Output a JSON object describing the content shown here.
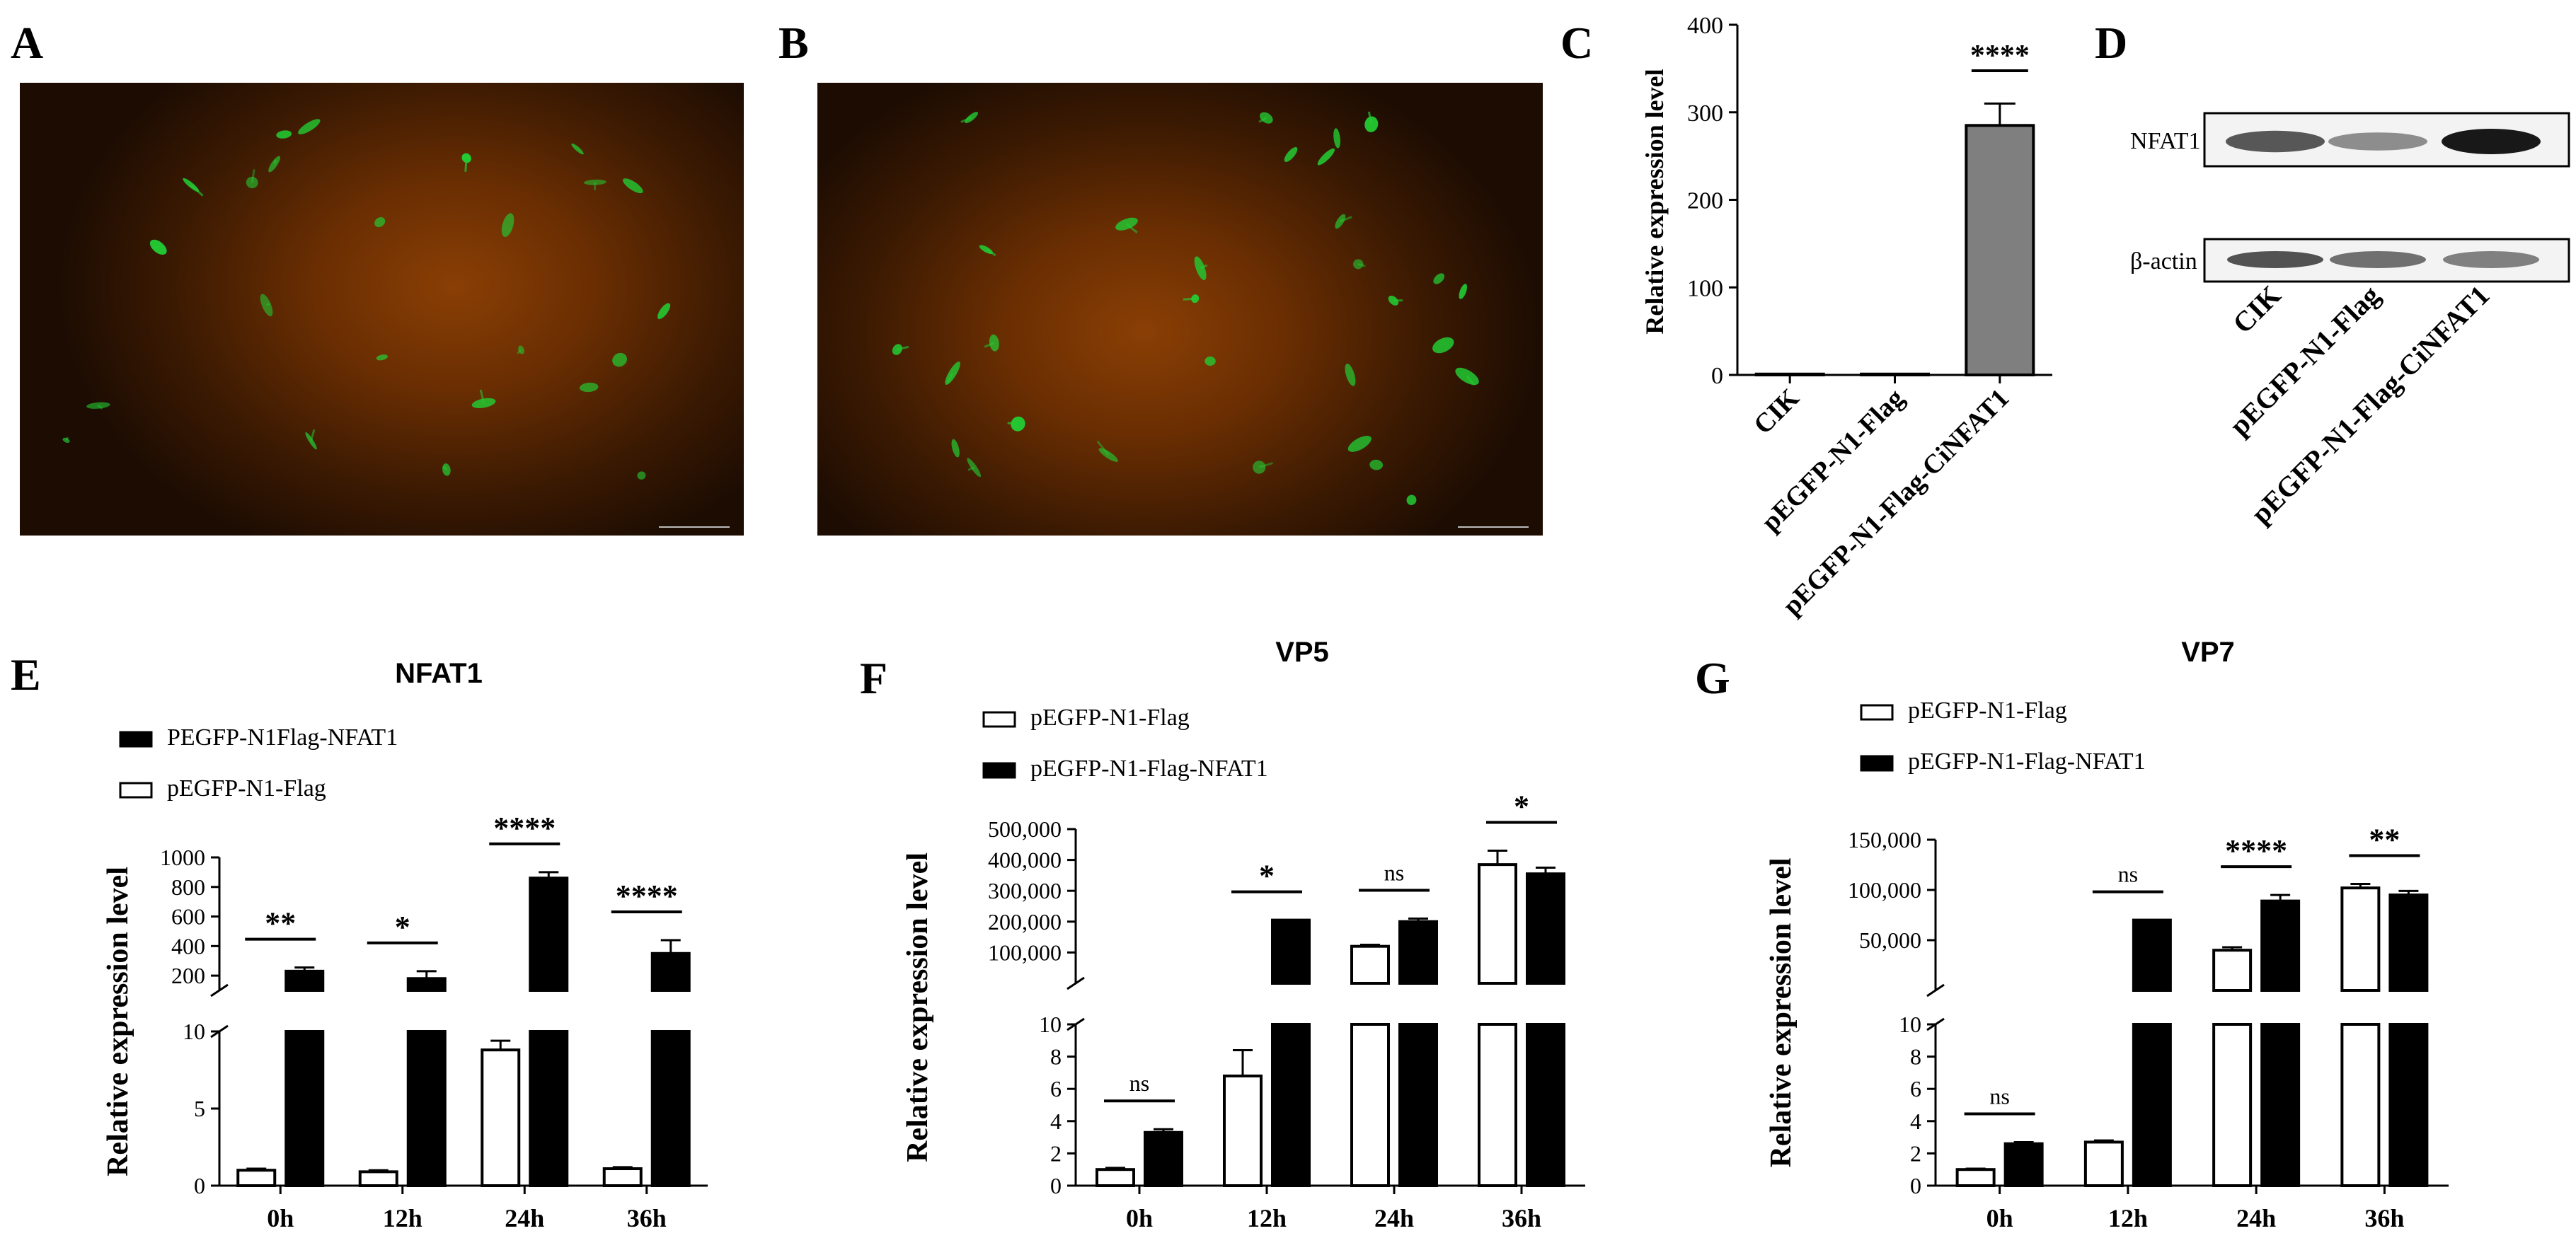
{
  "panel_letters": {
    "a": "A",
    "b": "B",
    "c": "C",
    "d": "D",
    "e": "E",
    "f": "F",
    "g": "G"
  },
  "western_blot": {
    "row_labels": [
      "NFAT1",
      "β-actin"
    ],
    "lanes": [
      "CIK",
      "pEGFP-N1-Flag",
      "pEGFP-N1-Flag-CiNFAT1"
    ],
    "intensity": {
      "NFAT1": [
        0.65,
        0.35,
        1.0
      ],
      "beta_actin": [
        0.8,
        0.6,
        0.5
      ]
    }
  },
  "colors": {
    "fluorescence_green": "#22cc33",
    "background_orange": "#8a3a00",
    "bar_gray": "#7f7f7f",
    "bar_black": "#000000",
    "bar_white": "#ffffff"
  },
  "chart_data": [
    {
      "id": "C",
      "type": "bar",
      "title": "",
      "ylabel": "Relative  expression level",
      "categories": [
        "CIK",
        "pEGFP-N1-Flag",
        "pEGFP-N1-Flag-CiNFAT1"
      ],
      "values": [
        1,
        1,
        285
      ],
      "errors": [
        0,
        0,
        25
      ],
      "ylim": [
        0,
        400
      ],
      "yticks": [
        0,
        100,
        200,
        300,
        400
      ],
      "significance": [
        {
          "from": 2,
          "to": 2,
          "label": "****"
        }
      ]
    },
    {
      "id": "E",
      "type": "bar",
      "title": "NFAT1",
      "ylabel": "Relative  expression level",
      "categories": [
        "0h",
        "12h",
        "24h",
        "36h"
      ],
      "broken_axis": {
        "lower": [
          0,
          10
        ],
        "upper": [
          10,
          1000
        ],
        "lower_ticks": [
          0,
          5,
          10
        ],
        "upper_ticks": [
          200,
          400,
          600,
          800,
          1000
        ]
      },
      "legend": [
        "PEGFP-N1Flag-NFAT1",
        "pEGFP-N1-Flag"
      ],
      "series": [
        {
          "name": "pEGFP-N1-Flag",
          "values": [
            1,
            0.9,
            8.8,
            1.1
          ],
          "errors": [
            0.1,
            0.1,
            0.6,
            0.1
          ]
        },
        {
          "name": "PEGFP-N1Flag-NFAT1",
          "values": [
            230,
            180,
            860,
            350
          ],
          "errors": [
            25,
            50,
            40,
            90
          ]
        }
      ],
      "significance": [
        "**",
        "*",
        "****",
        "****"
      ]
    },
    {
      "id": "F",
      "type": "bar",
      "title": "VP5",
      "ylabel": "Relative  expression level",
      "categories": [
        "0h",
        "12h",
        "24h",
        "36h"
      ],
      "broken_axis": {
        "lower": [
          0,
          10
        ],
        "upper": [
          10,
          500000
        ],
        "lower_ticks": [
          0,
          2,
          4,
          6,
          8,
          10
        ],
        "upper_ticks": [
          "100,000",
          "200,000",
          "300,000",
          "400,000",
          "500,000"
        ]
      },
      "legend": [
        "pEGFP-N1-Flag",
        "pEGFP-N1-Flag-NFAT1"
      ],
      "series": [
        {
          "name": "pEGFP-N1-Flag",
          "values": [
            1,
            6.8,
            120000,
            385000
          ],
          "errors": [
            0.1,
            1.6,
            5000,
            45000
          ]
        },
        {
          "name": "pEGFP-N1-Flag-NFAT1",
          "values": [
            3.3,
            205000,
            200000,
            355000
          ],
          "errors": [
            0.2,
            0,
            10000,
            20000
          ]
        }
      ],
      "significance": [
        "ns",
        "*",
        "ns",
        "*"
      ]
    },
    {
      "id": "G",
      "type": "bar",
      "title": "VP7",
      "ylabel": "Relative  expression level",
      "categories": [
        "0h",
        "12h",
        "24h",
        "36h"
      ],
      "broken_axis": {
        "lower": [
          0,
          10
        ],
        "upper": [
          10,
          150000
        ],
        "lower_ticks": [
          0,
          2,
          4,
          6,
          8,
          10
        ],
        "upper_ticks": [
          "50,000",
          "100,000",
          "150,000"
        ]
      },
      "legend": [
        "pEGFP-N1-Flag",
        "pEGFP-N1-Flag-NFAT1"
      ],
      "series": [
        {
          "name": "pEGFP-N1-Flag",
          "values": [
            1,
            2.7,
            40000,
            102000
          ],
          "errors": [
            0.05,
            0.1,
            3000,
            4000
          ]
        },
        {
          "name": "pEGFP-N1-Flag-NFAT1",
          "values": [
            2.6,
            70000,
            89000,
            95000
          ],
          "errors": [
            0.1,
            0,
            6000,
            4000
          ]
        }
      ],
      "significance": [
        "ns",
        "ns",
        "****",
        "**"
      ]
    }
  ]
}
